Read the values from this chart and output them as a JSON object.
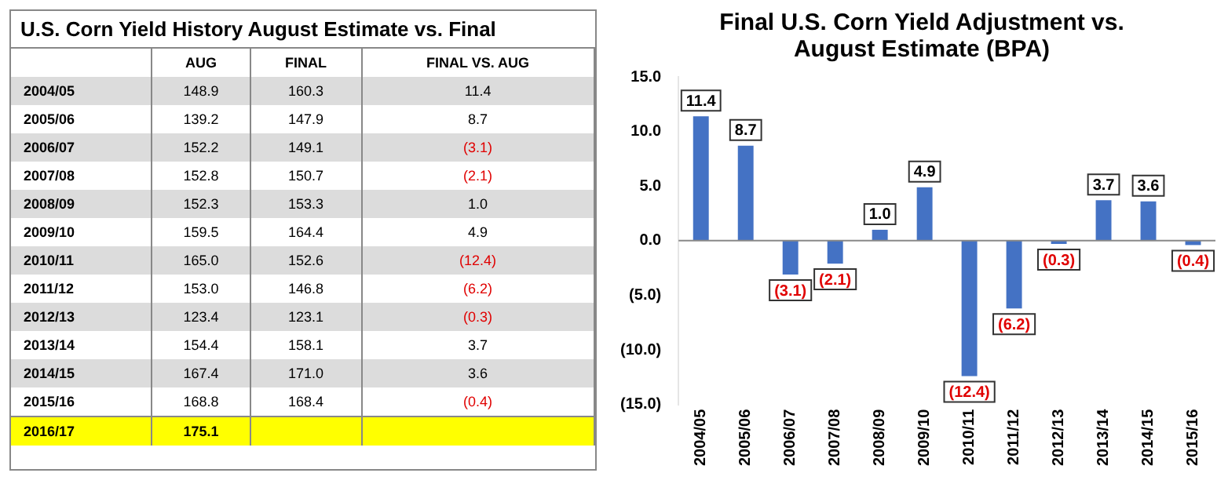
{
  "chart_data": [
    {
      "type": "other",
      "title": "U.S. Corn Yield History August Estimate vs. Final",
      "categories": [
        "2004/05",
        "2005/06",
        "2006/07",
        "2007/08",
        "2008/09",
        "2009/10",
        "2010/11",
        "2011/12",
        "2012/13",
        "2013/14",
        "2014/15",
        "2015/16",
        "2016/17"
      ],
      "series": [
        {
          "name": "AUG",
          "colors": [
            "#dcdcdc",
            "#ffffff",
            "#dcdcdc",
            "#ffffff",
            "#dcdcdc",
            "#ffffff",
            "#dcdcdc",
            "#ffffff",
            "#dcdcdc",
            "#ffffff",
            "#dcdcdc",
            "#ffffff",
            "#ffff00"
          ],
          "values": [
            148.9,
            139.2,
            152.2,
            152.8,
            152.3,
            159.5,
            165.0,
            153.0,
            123.4,
            154.4,
            167.4,
            168.8,
            175.1
          ],
          "value_labels": [
            "148.9",
            "139.2",
            "152.2",
            "152.8",
            "152.3",
            "159.5",
            "165.0",
            "153.0",
            "123.4",
            "154.4",
            "167.4",
            "168.8",
            "175.1"
          ]
        },
        {
          "name": "FINAL",
          "colors": [
            "#dcdcdc",
            "#ffffff",
            "#dcdcdc",
            "#ffffff",
            "#dcdcdc",
            "#ffffff",
            "#dcdcdc",
            "#ffffff",
            "#dcdcdc",
            "#ffffff",
            "#dcdcdc",
            "#ffffff",
            "#ffff00"
          ],
          "values": [
            160.3,
            147.9,
            149.1,
            150.7,
            153.3,
            164.4,
            152.6,
            146.8,
            123.1,
            158.1,
            171.0,
            168.4,
            null
          ],
          "value_labels": [
            "160.3",
            "147.9",
            "149.1",
            "150.7",
            "153.3",
            "164.4",
            "152.6",
            "146.8",
            "123.1",
            "158.1",
            "171.0",
            "168.4",
            null
          ]
        },
        {
          "name": "FINAL VS. AUG",
          "colors": [
            "#dcdcdc",
            "#ffffff",
            "#dcdcdc",
            "#ffffff",
            "#dcdcdc",
            "#ffffff",
            "#dcdcdc",
            "#ffffff",
            "#dcdcdc",
            "#ffffff",
            "#dcdcdc",
            "#ffffff",
            "#ffff00"
          ],
          "values": [
            11.4,
            8.7,
            -3.1,
            -2.1,
            1.0,
            4.9,
            -12.4,
            -6.2,
            -0.3,
            3.7,
            3.6,
            -0.4,
            null
          ],
          "value_labels": [
            "11.4",
            "8.7",
            "(3.1)",
            "(2.1)",
            "1.0",
            "4.9",
            "(12.4)",
            "(6.2)",
            "(0.3)",
            "3.7",
            "3.6",
            "(0.4)",
            null
          ]
        }
      ]
    },
    {
      "type": "bar",
      "title": "Final U.S. Corn Yield Adjustment vs. August Estimate (BPA)",
      "categories": [
        "2004/05",
        "2005/06",
        "2006/07",
        "2007/08",
        "2008/09",
        "2009/10",
        "2010/11",
        "2011/12",
        "2012/13",
        "2013/14",
        "2014/15",
        "2015/16"
      ],
      "values": [
        11.4,
        8.7,
        -3.1,
        -2.1,
        1.0,
        4.9,
        -12.4,
        -6.2,
        -0.3,
        3.7,
        3.6,
        -0.4
      ],
      "value_labels": [
        "11.4",
        "8.7",
        "(3.1)",
        "(2.1)",
        "1.0",
        "4.9",
        "(12.4)",
        "(6.2)",
        "(0.3)",
        "3.7",
        "3.6",
        "(0.4)"
      ],
      "color": "#4472c4",
      "ylim": [
        -15,
        15
      ],
      "yticks": [
        {
          "value": -15,
          "label": "(15.0)"
        },
        {
          "value": -10,
          "label": "(10.0)"
        },
        {
          "value": -5,
          "label": "(5.0)"
        },
        {
          "value": 0,
          "label": "0.0"
        },
        {
          "value": 5,
          "label": "5.0"
        },
        {
          "value": 10,
          "label": "10.0"
        },
        {
          "value": 15,
          "label": "15.0"
        }
      ]
    }
  ]
}
